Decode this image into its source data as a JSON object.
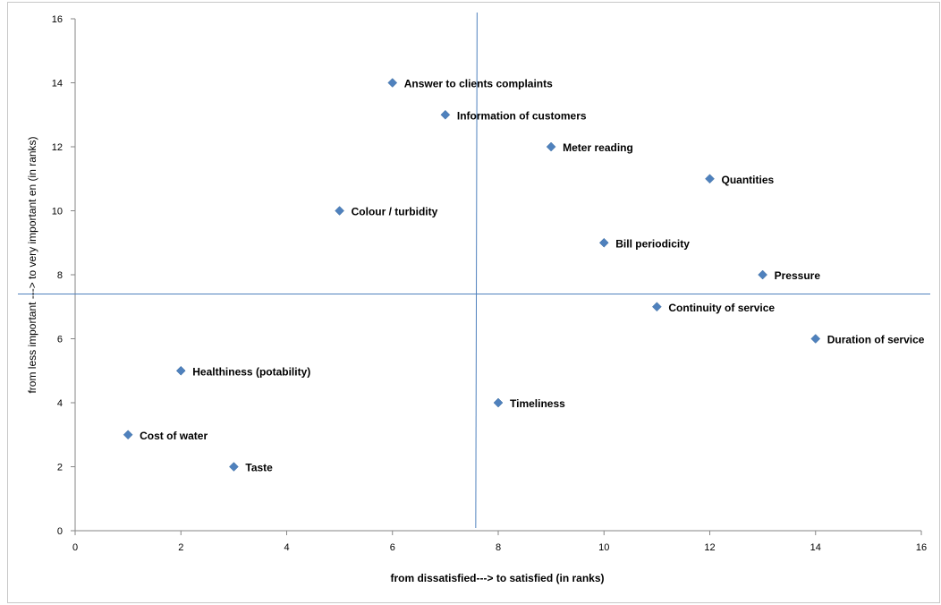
{
  "chart_data": {
    "type": "scatter",
    "title": "",
    "xlabel": "from dissatisfied---> to satisfied (in ranks)",
    "ylabel": "from less important ---> to very important en (in ranks)",
    "xlim": [
      0,
      16
    ],
    "ylim": [
      0,
      16
    ],
    "x_ticks": [
      "0",
      "2",
      "4",
      "6",
      "8",
      "10",
      "12",
      "14",
      "16"
    ],
    "y_ticks": [
      "0",
      "2",
      "4",
      "6",
      "8",
      "10",
      "12",
      "14",
      "16"
    ],
    "grid": false,
    "legend": "none",
    "marker_color": "#4f81bd",
    "reference_lines": {
      "x": 7.6,
      "y": 7.4,
      "color": "#4f81bd"
    },
    "points": [
      {
        "label": "Answer to clients complaints",
        "x": 6,
        "y": 14
      },
      {
        "label": "Information of customers",
        "x": 7,
        "y": 13
      },
      {
        "label": "Meter reading",
        "x": 9,
        "y": 12
      },
      {
        "label": "Quantities",
        "x": 12,
        "y": 11
      },
      {
        "label": "Colour / turbidity",
        "x": 5,
        "y": 10
      },
      {
        "label": "Bill periodicity",
        "x": 10,
        "y": 9
      },
      {
        "label": "Pressure",
        "x": 13,
        "y": 8
      },
      {
        "label": "Continuity of service",
        "x": 11,
        "y": 7
      },
      {
        "label": "Duration of service",
        "x": 14,
        "y": 6
      },
      {
        "label": "Healthiness (potability)",
        "x": 2,
        "y": 5
      },
      {
        "label": "Timeliness",
        "x": 8,
        "y": 4
      },
      {
        "label": "Cost of water",
        "x": 1,
        "y": 3
      },
      {
        "label": "Taste",
        "x": 3,
        "y": 2
      }
    ]
  }
}
